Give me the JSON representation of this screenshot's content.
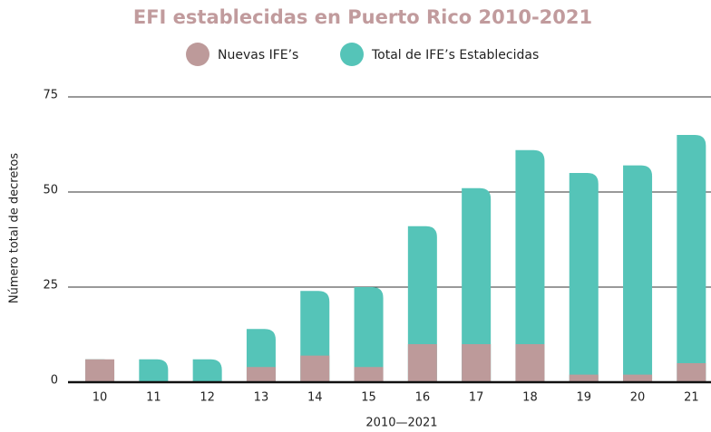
{
  "chart_data": {
    "type": "bar",
    "title": "EFI establecidas en Puerto Rico 2010-2021",
    "x_label": "2010—2021",
    "y_label": "Número total de decretos",
    "categories": [
      "10",
      "11",
      "12",
      "13",
      "14",
      "15",
      "16",
      "17",
      "18",
      "19",
      "20",
      "21"
    ],
    "series": [
      {
        "name": "Total de IFE’s Establecidas",
        "color": "#55c4b8",
        "values": [
          6,
          6,
          6,
          14,
          24,
          25,
          41,
          51,
          61,
          55,
          57,
          65
        ]
      },
      {
        "name": "Nuevas IFE’s",
        "color": "#bd9a9a",
        "values": [
          6,
          0,
          0,
          4,
          7,
          4,
          10,
          10,
          10,
          2,
          2,
          5
        ]
      }
    ],
    "ylim": [
      0,
      75
    ],
    "yticks": [
      0,
      25,
      50,
      75
    ],
    "grid": true,
    "legend": "top"
  }
}
